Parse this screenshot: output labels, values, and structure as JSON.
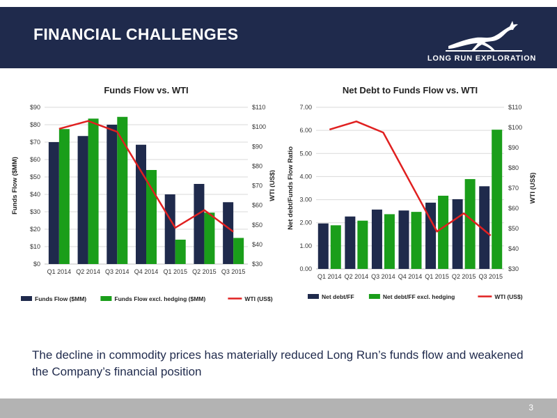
{
  "slide": {
    "title": "FINANCIAL CHALLENGES",
    "logo_text": "LONG RUN EXPLORATION",
    "caption": "The decline in commodity prices has materially reduced Long Run’s funds flow and weakened the Company’s financial position",
    "page_number": "3"
  },
  "colors": {
    "navy": "#1f2a4c",
    "green": "#1a9e1a",
    "red": "#e02020",
    "footer": "#b3b3b3"
  },
  "chart_data": [
    {
      "type": "bar",
      "title": "Funds Flow vs. WTI",
      "categories": [
        "Q1 2014",
        "Q2 2014",
        "Q3 2014",
        "Q4 2014",
        "Q1 2015",
        "Q2 2015",
        "Q3 2015"
      ],
      "series": [
        {
          "name": "Funds Flow ($MM)",
          "type": "bar",
          "axis": "left",
          "color": "#1f2a4c",
          "values": [
            70,
            73.5,
            80,
            68.5,
            40,
            46,
            35.5
          ]
        },
        {
          "name": "Funds Flow excl. hedging ($MM)",
          "type": "bar",
          "axis": "left",
          "color": "#1a9e1a",
          "values": [
            77.5,
            83.5,
            84.5,
            54,
            14,
            29.5,
            15
          ]
        },
        {
          "name": "WTI (US$)",
          "type": "line",
          "axis": "right",
          "color": "#e02020",
          "values": [
            99,
            103,
            97.5,
            73,
            48.5,
            57.5,
            46.5
          ]
        }
      ],
      "ylabel": "Funds Flow ($MM)",
      "y2label": "WTI (US$)",
      "ylim": [
        0,
        90
      ],
      "y2lim": [
        30,
        110
      ],
      "yticks": [
        "$0",
        "$10",
        "$20",
        "$30",
        "$40",
        "$50",
        "$60",
        "$70",
        "$80",
        "$90"
      ],
      "y2ticks": [
        "$30",
        "$40",
        "$50",
        "$60",
        "$70",
        "$80",
        "$90",
        "$100",
        "$110"
      ],
      "grid": true,
      "legend": "bottom"
    },
    {
      "type": "bar",
      "title": "Net Debt to Funds Flow vs. WTI",
      "categories": [
        "Q1 2014",
        "Q2 2014",
        "Q3 2014",
        "Q4 2014",
        "Q1 2015",
        "Q2 2015",
        "Q3 2015"
      ],
      "series": [
        {
          "name": "Net debt/FF",
          "type": "bar",
          "axis": "left",
          "color": "#1f2a4c",
          "values": [
            1.97,
            2.27,
            2.57,
            2.53,
            2.87,
            3.02,
            3.58
          ]
        },
        {
          "name": "Net debt/FF excl. hedging",
          "type": "bar",
          "axis": "left",
          "color": "#1a9e1a",
          "values": [
            1.89,
            2.09,
            2.37,
            2.47,
            3.17,
            3.89,
            6.03
          ]
        },
        {
          "name": "WTI (US$)",
          "type": "line",
          "axis": "right",
          "color": "#e02020",
          "values": [
            99,
            103,
            97.5,
            73,
            48.5,
            57.5,
            46.5
          ]
        }
      ],
      "ylabel": "Net debt/Funds Flow Ratio",
      "y2label": "WTI (US$)",
      "ylim": [
        0,
        7
      ],
      "y2lim": [
        30,
        110
      ],
      "yticks": [
        "0.00",
        "1.00",
        "2.00",
        "3.00",
        "4.00",
        "5.00",
        "6.00",
        "7.00"
      ],
      "y2ticks": [
        "$30",
        "$40",
        "$50",
        "$60",
        "$70",
        "$80",
        "$90",
        "$100",
        "$110"
      ],
      "grid": true,
      "legend": "bottom"
    }
  ]
}
